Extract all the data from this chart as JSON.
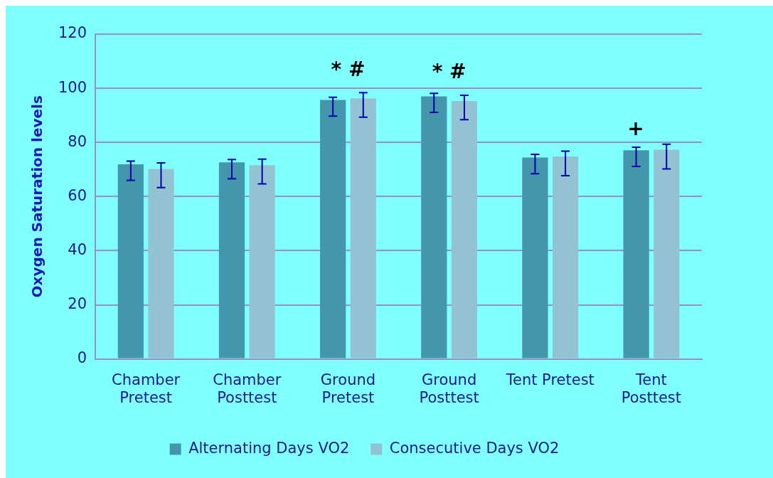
{
  "chart_data": {
    "type": "bar",
    "ylabel": "Oxygen Saturation levels",
    "categories": [
      "Chamber\nPretest",
      "Chamber\nPosttest",
      "Ground\nPretest",
      "Ground\nPosttest",
      "Tent Pretest",
      "Tent\nPosttest"
    ],
    "series": [
      {
        "name": "Alternating Days VO2",
        "color": "#4396ac",
        "values": [
          71.9,
          72.6,
          95.7,
          97.0,
          74.4,
          77.1
        ],
        "errors": [
          [
            66,
            73.1
          ],
          [
            66.6,
            73.7
          ],
          [
            89.7,
            96.7
          ],
          [
            91.1,
            98.1
          ],
          [
            68.4,
            75.6
          ],
          [
            71.1,
            78.2
          ]
        ]
      },
      {
        "name": "Consecutive Days VO2",
        "color": "#93c3d3",
        "values": [
          70.2,
          71.6,
          96.3,
          95.3,
          74.8,
          77.3
        ],
        "errors": [
          [
            63.3,
            72.4
          ],
          [
            64.7,
            73.8
          ],
          [
            89.3,
            98.4
          ],
          [
            88.4,
            97.4
          ],
          [
            67.7,
            76.8
          ],
          [
            70.2,
            79.3
          ]
        ]
      }
    ],
    "ylim": [
      0,
      120
    ],
    "yticks": [
      0,
      20,
      40,
      60,
      80,
      100,
      120
    ],
    "grid": "y",
    "legend": "bottom",
    "annotations": [
      "* #",
      "* #",
      "+"
    ]
  }
}
